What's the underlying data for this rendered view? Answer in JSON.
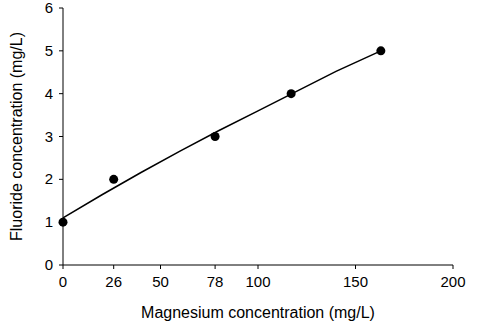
{
  "chart_data": {
    "type": "scatter",
    "x_label": "Magnesium concentration (mg/L)",
    "y_label": "Fluoride concentration (mg/L)",
    "xlim": [
      0,
      200
    ],
    "ylim": [
      0,
      6
    ],
    "xticks": [
      0,
      26,
      50,
      78,
      100,
      150,
      200
    ],
    "yticks": [
      0,
      1,
      2,
      3,
      4,
      5,
      6
    ],
    "grid": false,
    "series": [
      {
        "type": "scatter",
        "marker": "circle",
        "color": "#000000",
        "x": [
          0,
          26,
          78,
          117,
          163
        ],
        "values": [
          1,
          2,
          3,
          4,
          5
        ]
      },
      {
        "type": "line",
        "line_style": "solid",
        "color": "#000000",
        "x": [
          0,
          20,
          40,
          60,
          80,
          100,
          120,
          140,
          163
        ],
        "values": [
          1.1,
          1.64,
          2.16,
          2.66,
          3.14,
          3.6,
          4.06,
          4.52,
          5.0
        ]
      }
    ]
  }
}
